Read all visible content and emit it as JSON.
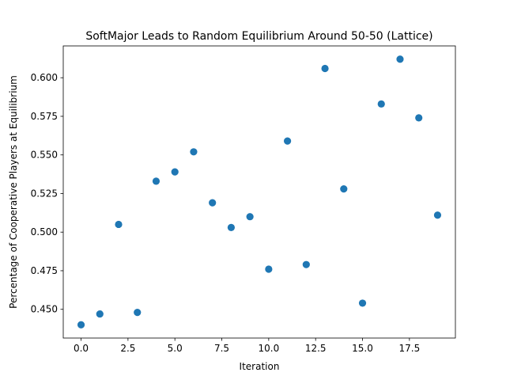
{
  "chart_data": {
    "type": "scatter",
    "title": "SoftMajor Leads to Random Equilibrium Around 50-50 (Lattice)",
    "xlabel": "Iteration",
    "ylabel": "Percentage of Cooperative Players at Equilibrium",
    "xlim": [
      -0.95,
      19.95
    ],
    "ylim": [
      0.4314,
      0.6206
    ],
    "x_ticks": [
      {
        "value": 0.0,
        "label": "0.0"
      },
      {
        "value": 2.5,
        "label": "2.5"
      },
      {
        "value": 5.0,
        "label": "5.0"
      },
      {
        "value": 7.5,
        "label": "7.5"
      },
      {
        "value": 10.0,
        "label": "10.0"
      },
      {
        "value": 12.5,
        "label": "12.5"
      },
      {
        "value": 15.0,
        "label": "15.0"
      },
      {
        "value": 17.5,
        "label": "17.5"
      }
    ],
    "y_ticks": [
      {
        "value": 0.45,
        "label": "0.450"
      },
      {
        "value": 0.475,
        "label": "0.475"
      },
      {
        "value": 0.5,
        "label": "0.500"
      },
      {
        "value": 0.525,
        "label": "0.525"
      },
      {
        "value": 0.55,
        "label": "0.550"
      },
      {
        "value": 0.575,
        "label": "0.575"
      },
      {
        "value": 0.6,
        "label": "0.600"
      }
    ],
    "color": "#1f77b4",
    "grid": false,
    "x": [
      0,
      1,
      2,
      3,
      4,
      5,
      6,
      7,
      8,
      9,
      10,
      11,
      12,
      13,
      14,
      15,
      16,
      17,
      18,
      19
    ],
    "y": [
      0.44,
      0.447,
      0.505,
      0.448,
      0.533,
      0.539,
      0.552,
      0.519,
      0.503,
      0.51,
      0.476,
      0.559,
      0.479,
      0.606,
      0.528,
      0.454,
      0.583,
      0.612,
      0.574,
      0.511
    ]
  }
}
